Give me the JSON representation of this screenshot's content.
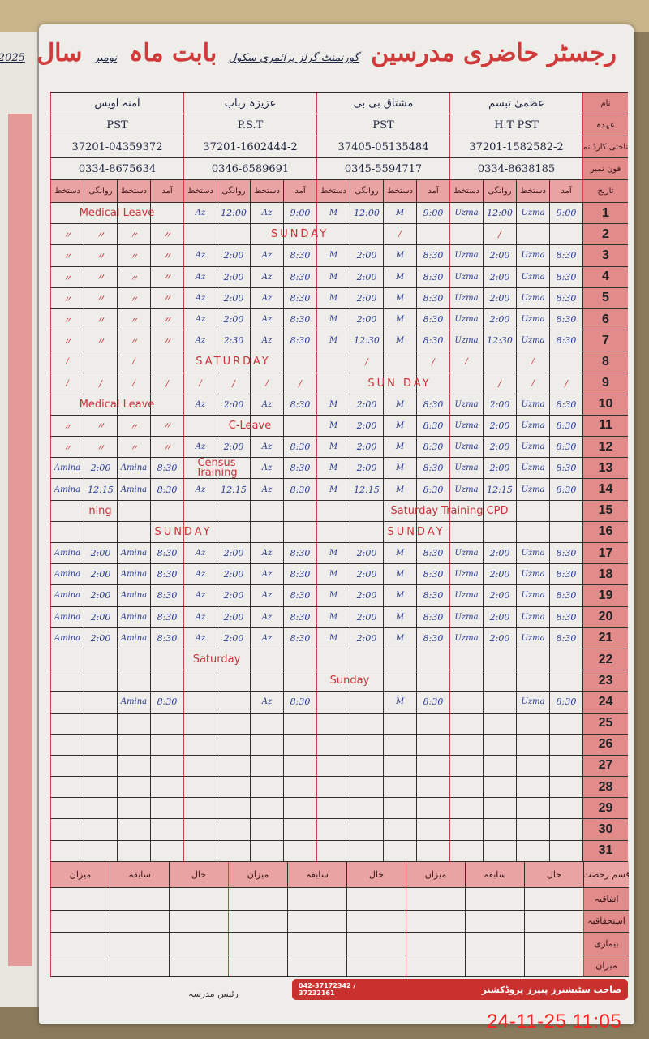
{
  "header": {
    "title": "رجسٹر حاضری مدرسین",
    "school": "گورنمنٹ گرلز پرائمری سکول",
    "month_label": "بابت ماہ",
    "month": "نومبر",
    "year_label": "سال",
    "year": "2025"
  },
  "row_labels": {
    "name": "نام",
    "designation": "عہدہ",
    "cnic": "شناختی کارڈ نمبر",
    "phone": "فون نمبر",
    "date": "تاریخ"
  },
  "column_headers": [
    "آمد",
    "دستخط",
    "روانگی",
    "دستخط"
  ],
  "teachers": [
    {
      "name": "عظمیٰ تبسم",
      "designation": "H.T PST",
      "cnic": "37201-1582582-2",
      "phone": "0334-8638185"
    },
    {
      "name": "مشتاق بی بی",
      "designation": "PST",
      "cnic": "37405-05135484",
      "phone": "0345-5594717"
    },
    {
      "name": "عزیزہ رباب",
      "designation": "P.S.T",
      "cnic": "37201-1602444-2",
      "phone": "0346-6589691"
    },
    {
      "name": "آمنہ اویس",
      "designation": "PST",
      "cnic": "37201-04359372",
      "phone": "0334-8675634"
    }
  ],
  "days": [
    {
      "d": "1",
      "t": [
        [
          "9:00",
          "Uzma",
          "12:00",
          "Uzma"
        ],
        [
          "9:00",
          "M",
          "12:00",
          "M"
        ],
        [
          "9:00",
          "Az",
          "12:00",
          "Az"
        ],
        []
      ],
      "spans": [
        {
          "text": "Medical Leave",
          "from": 12,
          "span": 4
        }
      ]
    },
    {
      "d": "2",
      "t": [
        [
          "",
          "",
          "/",
          ""
        ],
        [
          "",
          "/",
          "",
          ""
        ],
        [],
        [
          "〃",
          "〃",
          "〃",
          "〃"
        ]
      ],
      "spans": [
        {
          "text": "SUNDAY",
          "from": 5,
          "span": 6
        }
      ]
    },
    {
      "d": "3",
      "t": [
        [
          "8:30",
          "Uzma",
          "2:00",
          "Uzma"
        ],
        [
          "8:30",
          "M",
          "2:00",
          "M"
        ],
        [
          "8:30",
          "Az",
          "2:00",
          "Az"
        ],
        [
          "〃",
          "〃",
          "〃",
          "〃"
        ]
      ],
      "spans": []
    },
    {
      "d": "4",
      "t": [
        [
          "8:30",
          "Uzma",
          "2:00",
          "Uzma"
        ],
        [
          "8:30",
          "M",
          "2:00",
          "M"
        ],
        [
          "8:30",
          "Az",
          "2:00",
          "Az"
        ],
        [
          "〃",
          "〃",
          "〃",
          "〃"
        ]
      ],
      "spans": []
    },
    {
      "d": "5",
      "t": [
        [
          "8:30",
          "Uzma",
          "2:00",
          "Uzma"
        ],
        [
          "8:30",
          "M",
          "2:00",
          "M"
        ],
        [
          "8:30",
          "Az",
          "2:00",
          "Az"
        ],
        [
          "〃",
          "〃",
          "〃",
          "〃"
        ]
      ],
      "spans": []
    },
    {
      "d": "6",
      "t": [
        [
          "8:30",
          "Uzma",
          "2:00",
          "Uzma"
        ],
        [
          "8:30",
          "M",
          "2:00",
          "M"
        ],
        [
          "8:30",
          "Az",
          "2:00",
          "Az"
        ],
        [
          "〃",
          "〃",
          "〃",
          "〃"
        ]
      ],
      "spans": []
    },
    {
      "d": "7",
      "t": [
        [
          "8:30",
          "Uzma",
          "12:30",
          "Uzma"
        ],
        [
          "8:30",
          "M",
          "12:30",
          "M"
        ],
        [
          "8:30",
          "Az",
          "2:30",
          "Az"
        ],
        [
          "〃",
          "〃",
          "〃",
          "〃"
        ]
      ],
      "spans": []
    },
    {
      "d": "8",
      "t": [
        [
          "",
          "/",
          "",
          "/"
        ],
        [
          "/",
          "",
          "/",
          ""
        ],
        [],
        [
          "",
          "/",
          "",
          "/"
        ]
      ],
      "spans": [
        {
          "text": "SATURDAY",
          "from": 8,
          "span": 5
        }
      ]
    },
    {
      "d": "9",
      "t": [
        [
          "/",
          "/",
          "/",
          ""
        ],
        [],
        [
          "/",
          "/",
          "/",
          "/"
        ],
        [
          "/",
          "/",
          "/",
          "/"
        ]
      ],
      "spans": [
        {
          "text": "SUN DAY",
          "from": 3,
          "span": 6
        }
      ]
    },
    {
      "d": "10",
      "t": [
        [
          "8:30",
          "Uzma",
          "2:00",
          "Uzma"
        ],
        [
          "8:30",
          "M",
          "2:00",
          "M"
        ],
        [
          "8:30",
          "Az",
          "2:00",
          "Az"
        ],
        []
      ],
      "spans": [
        {
          "text": "Medical Leave",
          "from": 12,
          "span": 4
        }
      ]
    },
    {
      "d": "11",
      "t": [
        [
          "8:30",
          "Uzma",
          "2:00",
          "Uzma"
        ],
        [
          "8:30",
          "M",
          "2:00",
          "M"
        ],
        [],
        [
          "〃",
          "〃",
          "〃",
          "〃"
        ]
      ],
      "spans": [
        {
          "text": "C-Leave",
          "from": 8,
          "span": 4
        }
      ]
    },
    {
      "d": "12",
      "t": [
        [
          "8:30",
          "Uzma",
          "2:00",
          "Uzma"
        ],
        [
          "8:30",
          "M",
          "2:00",
          "M"
        ],
        [
          "8:30",
          "Az",
          "2:00",
          "Az"
        ],
        [
          "〃",
          "〃",
          "〃",
          "〃"
        ]
      ],
      "spans": []
    },
    {
      "d": "13",
      "t": [
        [
          "8:30",
          "Uzma",
          "2:00",
          "Uzma"
        ],
        [
          "8:30",
          "M",
          "2:00",
          "M"
        ],
        [
          "8:30",
          "Az",
          "",
          ""
        ],
        [
          "8:30",
          "Amina",
          "2:00",
          "Amina"
        ]
      ],
      "spans": [
        {
          "text": "Census Training",
          "from": 10,
          "span": 2
        }
      ]
    },
    {
      "d": "14",
      "t": [
        [
          "8:30",
          "Uzma",
          "12:15",
          "Uzma"
        ],
        [
          "8:30",
          "M",
          "12:15",
          "M"
        ],
        [
          "8:30",
          "Az",
          "12:15",
          "Az"
        ],
        [
          "8:30",
          "Amina",
          "12:15",
          "Amina"
        ]
      ],
      "spans": []
    },
    {
      "d": "15",
      "t": [
        [],
        [],
        [],
        []
      ],
      "spans": [
        {
          "text": "Saturday Training CPD",
          "from": 0,
          "span": 8
        },
        {
          "text": "ning",
          "from": 13,
          "span": 3
        }
      ]
    },
    {
      "d": "16",
      "t": [
        [],
        [],
        [],
        []
      ],
      "spans": [
        {
          "text": "SUNDAY",
          "from": 2,
          "span": 6
        },
        {
          "text": "SUNDAY",
          "from": 8,
          "span": 8
        }
      ]
    },
    {
      "d": "17",
      "t": [
        [
          "8:30",
          "Uzma",
          "2:00",
          "Uzma"
        ],
        [
          "8:30",
          "M",
          "2:00",
          "M"
        ],
        [
          "8:30",
          "Az",
          "2:00",
          "Az"
        ],
        [
          "8:30",
          "Amina",
          "2:00",
          "Amina"
        ]
      ],
      "spans": []
    },
    {
      "d": "18",
      "t": [
        [
          "8:30",
          "Uzma",
          "2:00",
          "Uzma"
        ],
        [
          "8:30",
          "M",
          "2:00",
          "M"
        ],
        [
          "8:30",
          "Az",
          "2:00",
          "Az"
        ],
        [
          "8:30",
          "Amina",
          "2:00",
          "Amina"
        ]
      ],
      "spans": []
    },
    {
      "d": "19",
      "t": [
        [
          "8:30",
          "Uzma",
          "2:00",
          "Uzma"
        ],
        [
          "8:30",
          "M",
          "2:00",
          "M"
        ],
        [
          "8:30",
          "Az",
          "2:00",
          "Az"
        ],
        [
          "8:30",
          "Amina",
          "2:00",
          "Amina"
        ]
      ],
      "spans": []
    },
    {
      "d": "20",
      "t": [
        [
          "8:30",
          "Uzma",
          "2:00",
          "Uzma"
        ],
        [
          "8:30",
          "M",
          "2:00",
          "M"
        ],
        [
          "8:30",
          "Az",
          "2:00",
          "Az"
        ],
        [
          "8:30",
          "Amina",
          "2:00",
          "Amina"
        ]
      ],
      "spans": []
    },
    {
      "d": "21",
      "t": [
        [
          "8:30",
          "Uzma",
          "2:00",
          "Uzma"
        ],
        [
          "8:30",
          "M",
          "2:00",
          "M"
        ],
        [
          "8:30",
          "Az",
          "2:00",
          "Az"
        ],
        [
          "8:30",
          "Amina",
          "2:00",
          "Amina"
        ]
      ],
      "spans": []
    },
    {
      "d": "22",
      "t": [
        [],
        [],
        [],
        []
      ],
      "spans": [
        {
          "text": "Saturday",
          "from": 9,
          "span": 4
        }
      ]
    },
    {
      "d": "23",
      "t": [
        [],
        [],
        [],
        []
      ],
      "spans": [
        {
          "text": "Sunday",
          "from": 5,
          "span": 4
        }
      ]
    },
    {
      "d": "24",
      "t": [
        [
          "8:30",
          "Uzma",
          "",
          ""
        ],
        [
          "8:30",
          "M",
          "",
          ""
        ],
        [
          "8:30",
          "Az",
          "",
          ""
        ],
        [
          "8:30",
          "Amina",
          "",
          ""
        ]
      ],
      "spans": []
    },
    {
      "d": "25",
      "t": [
        [],
        [],
        [],
        []
      ],
      "spans": []
    },
    {
      "d": "26",
      "t": [
        [],
        [],
        [],
        []
      ],
      "spans": []
    },
    {
      "d": "27",
      "t": [
        [],
        [],
        [],
        []
      ],
      "spans": []
    },
    {
      "d": "28",
      "t": [
        [],
        [],
        [],
        []
      ],
      "spans": []
    },
    {
      "d": "29",
      "t": [
        [],
        [],
        [],
        []
      ],
      "spans": []
    },
    {
      "d": "30",
      "t": [
        [],
        [],
        [],
        []
      ],
      "spans": []
    },
    {
      "d": "31",
      "t": [
        [],
        [],
        [],
        []
      ],
      "spans": []
    }
  ],
  "leave_summary": {
    "label": "قسم رخصت",
    "columns": [
      "حال",
      "سابقہ",
      "میزان",
      "حال",
      "سابقہ",
      "میزان",
      "حال",
      "سابقہ",
      "میزان"
    ],
    "rows": [
      "اتفاقیہ",
      "استحقاقیہ",
      "بیماری",
      "میزان"
    ]
  },
  "footer": {
    "publisher": "صاحب سٹیشنرز پیپرز پروڈکشنز",
    "phone": "042-37172342 / 37232161",
    "principal_label": "رئیس مدرسہ"
  },
  "timestamp": "24-11-25  11:05",
  "colors": {
    "red_ink": "#c8323a",
    "blue_ink": "#283a96",
    "header_pink": "#e28b8b"
  }
}
